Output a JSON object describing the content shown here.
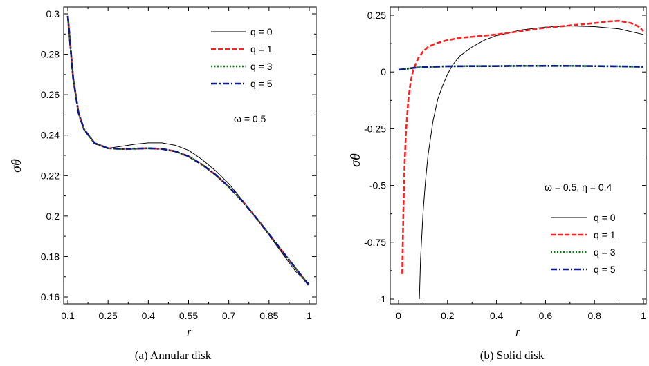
{
  "chart_data": [
    {
      "type": "line",
      "caption": "(a) Annular disk",
      "xlabel": "r",
      "ylabel": "σθ",
      "xlim": [
        0.1,
        1.0
      ],
      "ylim": [
        0.16,
        0.3
      ],
      "x_ticks": [
        0.1,
        0.25,
        0.4,
        0.55,
        0.7,
        0.85,
        1.0
      ],
      "x_tick_labels": [
        "0.1",
        "0.25",
        "0.4",
        "0.55",
        "0.7",
        "0.85",
        "1"
      ],
      "y_ticks": [
        0.16,
        0.18,
        0.2,
        0.22,
        0.24,
        0.26,
        0.28,
        0.3
      ],
      "y_tick_labels": [
        "0.16",
        "0.18",
        "0.2",
        "0.22",
        "0.24",
        "0.26",
        "0.28",
        "0.3"
      ],
      "annotations": [
        "ω = 0.5"
      ],
      "legend_position": "top-right",
      "grid": false,
      "x": [
        0.1,
        0.12,
        0.14,
        0.16,
        0.2,
        0.25,
        0.3,
        0.35,
        0.4,
        0.45,
        0.5,
        0.55,
        0.6,
        0.65,
        0.7,
        0.75,
        0.8,
        0.85,
        0.9,
        0.95,
        1.0
      ],
      "series": [
        {
          "name": "q = 0",
          "color": "#000000",
          "style": "solid",
          "width": 1,
          "values": [
            0.299,
            0.268,
            0.251,
            0.243,
            0.236,
            0.2335,
            0.2345,
            0.2355,
            0.2362,
            0.2362,
            0.235,
            0.2325,
            0.228,
            0.2225,
            0.216,
            0.208,
            0.1995,
            0.1905,
            0.1815,
            0.1725,
            0.1665
          ]
        },
        {
          "name": "q = 1",
          "color": "#ff2020",
          "style": "dash",
          "width": 2.6,
          "values": [
            0.299,
            0.268,
            0.251,
            0.243,
            0.236,
            0.2335,
            0.2332,
            0.2333,
            0.2335,
            0.2332,
            0.232,
            0.2295,
            0.2255,
            0.2205,
            0.2145,
            0.2075,
            0.1995,
            0.191,
            0.1825,
            0.174,
            0.1655
          ]
        },
        {
          "name": "q = 3",
          "color": "#0a7a0a",
          "style": "dot",
          "width": 2.6,
          "values": [
            0.299,
            0.268,
            0.251,
            0.243,
            0.236,
            0.2335,
            0.2332,
            0.2333,
            0.2335,
            0.2332,
            0.232,
            0.2295,
            0.2255,
            0.2205,
            0.2145,
            0.2075,
            0.1995,
            0.191,
            0.1825,
            0.174,
            0.1655
          ]
        },
        {
          "name": "q = 5",
          "color": "#0a1a8a",
          "style": "dashdot",
          "width": 2.6,
          "values": [
            0.299,
            0.268,
            0.251,
            0.243,
            0.236,
            0.2335,
            0.2332,
            0.2333,
            0.2335,
            0.2332,
            0.232,
            0.2295,
            0.2255,
            0.2205,
            0.2145,
            0.2075,
            0.1995,
            0.191,
            0.1825,
            0.174,
            0.1655
          ]
        }
      ]
    },
    {
      "type": "line",
      "caption": "(b) Solid disk",
      "xlabel": "r",
      "ylabel": "σθ",
      "xlim": [
        -0.05,
        1.0
      ],
      "ylim": [
        -1.02,
        0.26
      ],
      "x_ticks": [
        0,
        0.2,
        0.4,
        0.6,
        0.8,
        1
      ],
      "x_tick_labels": [
        "0",
        "0.2",
        "0.4",
        "0.6",
        "0.8",
        "1"
      ],
      "y_ticks": [
        -1,
        -0.75,
        -0.5,
        -0.25,
        0,
        0.25
      ],
      "y_tick_labels": [
        "-1",
        "-0.75",
        "-0.5",
        "-0.25",
        "0",
        "0.25"
      ],
      "annotations": [
        "ω = 0.5,  η = 0.4"
      ],
      "legend_position": "bottom-right",
      "grid": false,
      "series": [
        {
          "name": "q = 0",
          "color": "#000000",
          "style": "solid",
          "width": 1,
          "x": [
            0.085,
            0.09,
            0.1,
            0.11,
            0.12,
            0.14,
            0.16,
            0.18,
            0.2,
            0.22,
            0.25,
            0.3,
            0.35,
            0.4,
            0.5,
            0.6,
            0.7,
            0.8,
            0.9,
            1.0
          ],
          "values": [
            -1.0,
            -0.82,
            -0.62,
            -0.48,
            -0.37,
            -0.22,
            -0.12,
            -0.06,
            -0.01,
            0.03,
            0.07,
            0.11,
            0.14,
            0.16,
            0.185,
            0.198,
            0.203,
            0.2,
            0.19,
            0.165
          ]
        },
        {
          "name": "q = 1",
          "color": "#ff2020",
          "style": "dash",
          "width": 2.6,
          "x": [
            0.015,
            0.02,
            0.025,
            0.03,
            0.04,
            0.05,
            0.06,
            0.08,
            0.1,
            0.12,
            0.15,
            0.2,
            0.25,
            0.3,
            0.4,
            0.5,
            0.6,
            0.7,
            0.8,
            0.85,
            0.9,
            0.95,
            0.98,
            1.0
          ],
          "values": [
            -0.89,
            -0.6,
            -0.4,
            -0.27,
            -0.12,
            -0.04,
            0.01,
            0.06,
            0.09,
            0.11,
            0.125,
            0.14,
            0.15,
            0.155,
            0.165,
            0.18,
            0.195,
            0.205,
            0.215,
            0.222,
            0.225,
            0.215,
            0.2,
            0.18
          ]
        },
        {
          "name": "q = 3",
          "color": "#0a7a0a",
          "style": "dot",
          "width": 2.6,
          "x": [
            0.0,
            0.02,
            0.04,
            0.06,
            0.1,
            0.2,
            0.3,
            0.4,
            0.5,
            0.6,
            0.7,
            0.8,
            0.9,
            1.0
          ],
          "values": [
            0.01,
            0.012,
            0.015,
            0.018,
            0.022,
            0.025,
            0.026,
            0.026,
            0.027,
            0.027,
            0.027,
            0.026,
            0.025,
            0.023
          ]
        },
        {
          "name": "q = 5",
          "color": "#0a1a8a",
          "style": "dashdot",
          "width": 2.6,
          "x": [
            0.0,
            0.02,
            0.04,
            0.06,
            0.1,
            0.2,
            0.3,
            0.4,
            0.5,
            0.6,
            0.7,
            0.8,
            0.9,
            1.0
          ],
          "values": [
            0.01,
            0.012,
            0.015,
            0.018,
            0.022,
            0.025,
            0.026,
            0.026,
            0.027,
            0.027,
            0.027,
            0.026,
            0.025,
            0.023
          ]
        }
      ]
    }
  ]
}
